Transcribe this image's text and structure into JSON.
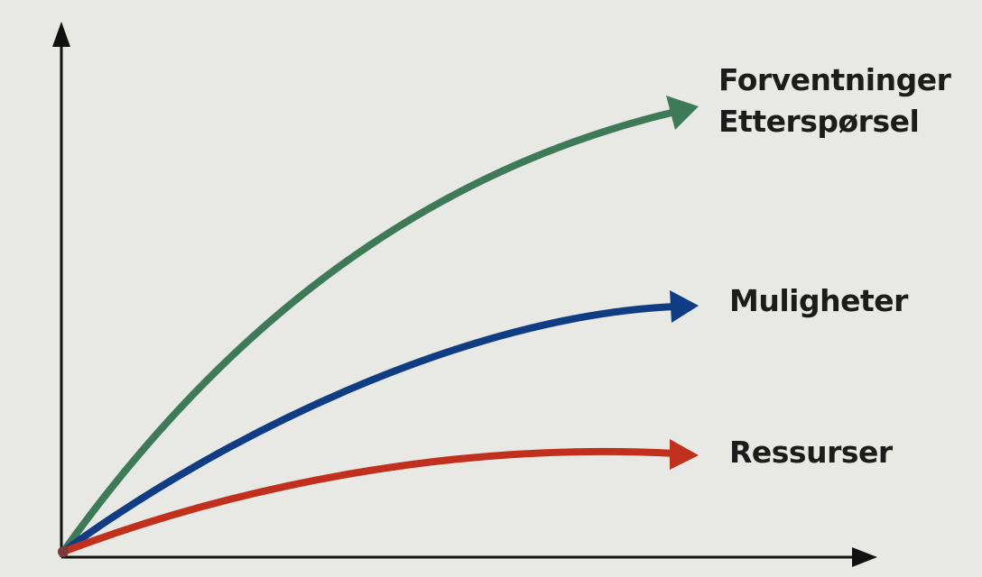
{
  "diagram": {
    "background": "#e8e9e4",
    "axis_color": "#111111",
    "curves": [
      {
        "id": "green",
        "color": "#3e7a58",
        "labels": [
          "Forventninger",
          "Etterspørsel"
        ]
      },
      {
        "id": "blue",
        "color": "#0f3c82",
        "labels": [
          "Muligheter"
        ]
      },
      {
        "id": "red",
        "color": "#c0301d",
        "labels": [
          "Ressurser"
        ]
      }
    ]
  }
}
